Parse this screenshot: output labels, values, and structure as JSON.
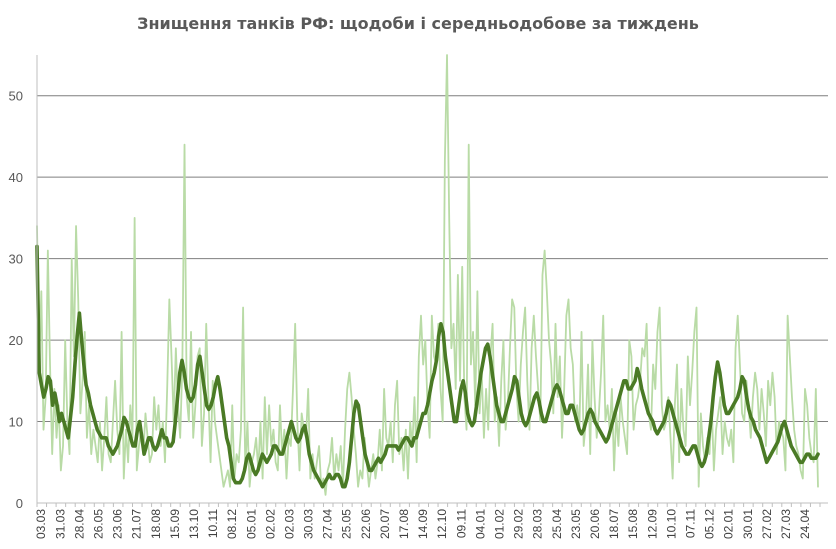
{
  "chart_data": {
    "type": "line",
    "title": "Знищення танків РФ: щодоби і середньодобове за тиждень",
    "xlabel": "",
    "ylabel": "",
    "ylim": [
      0,
      55
    ],
    "y_ticks": [
      0,
      10,
      20,
      30,
      40,
      50
    ],
    "grid": "horizontal",
    "legend": "none",
    "colors": {
      "daily": "#b9dba6",
      "avg": "#4a7a25",
      "grid": "#7f7f7f",
      "axis": "#bfbfbf",
      "tick_text": "#595959"
    },
    "x_ticks": [
      "03.03",
      "31.03",
      "28.04",
      "26.05",
      "23.06",
      "21.07",
      "18.08",
      "15.09",
      "13.10",
      "10.11",
      "08.12",
      "05.01",
      "02.02",
      "02.03",
      "30.03",
      "27.04",
      "25.05",
      "22.06",
      "20.07",
      "17.08",
      "14.09",
      "12.10",
      "09.11",
      "04.01",
      "01.02",
      "29.02",
      "28.03",
      "25.04",
      "23.05",
      "20.06",
      "18.07",
      "15.08",
      "12.09",
      "10.10",
      "07.11",
      "05.12",
      "02.01",
      "30.01",
      "27.02",
      "27.03",
      "24.04"
    ],
    "series": [
      {
        "key": "daily",
        "values": [
          34,
          17,
          26,
          9,
          13,
          31,
          17,
          6,
          14,
          8,
          12,
          4,
          7,
          20,
          10,
          6,
          30,
          18,
          34,
          25,
          11,
          15,
          21,
          8,
          12,
          6,
          9,
          7,
          5,
          10,
          4,
          8,
          13,
          6,
          5,
          10,
          15,
          9,
          6,
          21,
          3,
          9,
          5,
          12,
          8,
          35,
          4,
          7,
          9,
          6,
          11,
          8,
          5,
          6,
          13,
          9,
          12,
          7,
          10,
          5,
          14,
          25,
          18,
          10,
          19,
          12,
          8,
          17,
          44,
          13,
          10,
          21,
          8,
          12,
          18,
          19,
          7,
          11,
          22,
          13,
          5,
          15,
          10,
          8,
          6,
          4,
          2,
          3,
          4,
          2,
          12,
          3,
          6,
          5,
          9,
          24,
          4,
          10,
          2,
          5,
          6,
          8,
          4,
          10,
          3,
          13,
          6,
          12,
          7,
          9,
          5,
          4,
          12,
          6,
          9,
          3,
          8,
          7,
          14,
          22,
          10,
          4,
          11,
          9,
          8,
          14,
          3,
          6,
          3,
          5,
          7,
          2,
          3,
          1,
          4,
          5,
          8,
          3,
          6,
          4,
          7,
          2,
          9,
          14,
          16,
          13,
          9,
          6,
          2,
          4,
          3,
          8,
          5,
          2,
          4,
          6,
          3,
          5,
          9,
          4,
          14,
          8,
          7,
          10,
          5,
          12,
          15,
          6,
          8,
          4,
          9,
          3,
          10,
          7,
          13,
          5,
          18,
          23,
          17,
          20,
          12,
          8,
          23,
          18,
          17,
          22,
          14,
          10,
          42,
          55,
          35,
          19,
          22,
          14,
          28,
          15,
          29,
          13,
          9,
          44,
          17,
          21,
          12,
          26,
          11,
          16,
          8,
          14,
          9,
          18,
          22,
          10,
          13,
          7,
          15,
          20,
          9,
          12,
          19,
          25,
          24,
          14,
          10,
          17,
          21,
          24,
          15,
          9,
          19,
          23,
          18,
          14,
          10,
          28,
          31,
          26,
          20,
          17,
          11,
          22,
          13,
          18,
          8,
          14,
          23,
          25,
          19,
          17,
          10,
          12,
          9,
          21,
          7,
          10,
          17,
          6,
          20,
          13,
          8,
          11,
          16,
          23,
          10,
          12,
          9,
          14,
          4,
          11,
          7,
          13,
          10,
          8,
          6,
          20,
          18,
          9,
          12,
          13,
          15,
          19,
          18,
          22,
          11,
          9,
          17,
          14,
          21,
          24,
          12,
          9,
          10,
          13,
          8,
          3,
          12,
          17,
          5,
          14,
          9,
          7,
          18,
          12,
          16,
          21,
          24,
          2,
          11,
          7,
          5,
          8,
          6,
          12,
          4,
          9,
          11,
          13,
          6,
          10,
          8,
          7,
          9,
          5,
          19,
          23,
          17,
          11,
          10,
          15,
          12,
          8,
          13,
          16,
          14,
          9,
          14,
          11,
          7,
          15,
          12,
          16,
          13,
          6,
          10,
          9,
          8,
          4,
          23,
          18,
          13,
          9,
          7,
          6,
          4,
          3,
          14,
          12,
          8,
          6,
          5,
          14,
          2
        ],
        "name": ""
      },
      {
        "key": "avg",
        "values": [
          31.5,
          16,
          14.5,
          13,
          14,
          15.5,
          15,
          12,
          13.5,
          12,
          10,
          11,
          10,
          9,
          8,
          10.5,
          13,
          17,
          20.5,
          23.3,
          20,
          17,
          14.5,
          13.5,
          12,
          11,
          10,
          9,
          8.5,
          8,
          8,
          8,
          7,
          6.5,
          6,
          6.5,
          7,
          8,
          9,
          10.5,
          10,
          9,
          8,
          7,
          7,
          9,
          10,
          8,
          6,
          7,
          8,
          8,
          7,
          6.5,
          7,
          8,
          9,
          8,
          8,
          7,
          7,
          7.5,
          10,
          13,
          16,
          17.5,
          16,
          14,
          13,
          12.5,
          13,
          14.5,
          17,
          18,
          16,
          14,
          12,
          11.5,
          12,
          13,
          14.5,
          15.5,
          14,
          12,
          10,
          8,
          7,
          5,
          3,
          2.5,
          2.5,
          2.5,
          3,
          4,
          5.5,
          6,
          5,
          4,
          3.5,
          4,
          5,
          6,
          5.5,
          5,
          5.5,
          6,
          7,
          7,
          6.5,
          6,
          6,
          7,
          8,
          9,
          10,
          9,
          8,
          7.5,
          8,
          9,
          9.5,
          8,
          6,
          5,
          4,
          3.5,
          3,
          2.5,
          2,
          2.5,
          3,
          3.5,
          3,
          3,
          3.5,
          3.5,
          3,
          2,
          2,
          3,
          5,
          8,
          11,
          12.5,
          12,
          10,
          8,
          6,
          5,
          4,
          4,
          4.5,
          5,
          5.5,
          5,
          5.5,
          6,
          7,
          7,
          7,
          7,
          7,
          6.5,
          7,
          7.5,
          8,
          8,
          7.5,
          7,
          8,
          8,
          9,
          10,
          11,
          11,
          12,
          13.5,
          15,
          16,
          17.5,
          20.5,
          22,
          21,
          18,
          16,
          14,
          12,
          10,
          10,
          12,
          14,
          15,
          13.5,
          11,
          10,
          9.5,
          10,
          12,
          14,
          16,
          17.5,
          19,
          19.5,
          18,
          16,
          14,
          12,
          11,
          10,
          10,
          11,
          12,
          13,
          14,
          15.5,
          15,
          13,
          11,
          10,
          9.5,
          10,
          11,
          12,
          13,
          13.5,
          12.5,
          11,
          10,
          10,
          11,
          12,
          13,
          14,
          14.5,
          14,
          13,
          12,
          11,
          11,
          12,
          12,
          11,
          10,
          9,
          8.5,
          9,
          10,
          11,
          11.5,
          11,
          10,
          9.5,
          9,
          8.5,
          8,
          7.5,
          8,
          9,
          10,
          11,
          12,
          13,
          14,
          15,
          15,
          14,
          14,
          14.5,
          15,
          16.5,
          15.5,
          14,
          13,
          12,
          11,
          10.5,
          10,
          9,
          8.5,
          9,
          9.5,
          10,
          11,
          12.5,
          12,
          11,
          10,
          9,
          8,
          7,
          6.5,
          6,
          6,
          6.5,
          7,
          7,
          6,
          5,
          4.5,
          5,
          6,
          8,
          10,
          13,
          15.5,
          17.3,
          16,
          14,
          12,
          11,
          11,
          11.5,
          12,
          12.5,
          13,
          14,
          15.5,
          15,
          13,
          11.5,
          10.5,
          10,
          9,
          8.5,
          8,
          7,
          6,
          5,
          5.5,
          6,
          6.5,
          7,
          7.5,
          8.5,
          9.5,
          10,
          9,
          8,
          7,
          6.5,
          6,
          5.5,
          5,
          5,
          5.5,
          6,
          6,
          5.5,
          5.5,
          5.5,
          6
        ],
        "name": ""
      }
    ]
  }
}
